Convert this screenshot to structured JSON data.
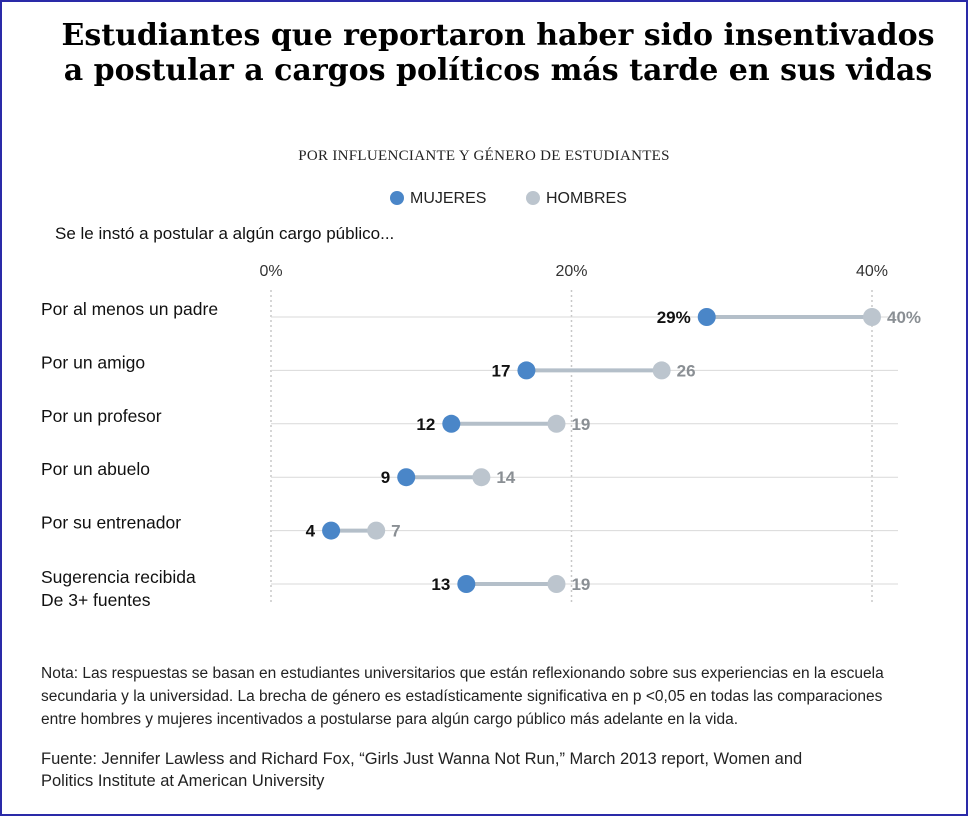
{
  "title_line1": "Estudiantes que reportaron haber sido insentivados",
  "title_line2": "a postular a cargos políticos más tarde en sus vidas",
  "subtitle": "POR INFLUENCIANTE Y GÉNERO DE ESTUDIANTES",
  "question": "Se le instó a postular a algún cargo público...",
  "note": "Nota: Las respuestas se basan en estudiantes universitarios que están reflexionando sobre sus experiencias en la escuela secundaria y la universidad. La brecha de género es estadísticamente significativa en p <0,05 en todas las comparaciones entre hombres y mujeres incentivados a postularse para algún cargo público más adelante en la vida.",
  "source": "Fuente: Jennifer Lawless and Richard Fox, “Girls Just Wanna Not Run,” March 2013 report, Women and Politics Institute at American University",
  "colors": {
    "women": "#4a86c8",
    "men": "#bcc5ce",
    "connector": "#b4bfc9",
    "grid": "#cccccc",
    "men_label": "#8a8f94"
  },
  "chart_data": {
    "type": "dot-plot",
    "legend": [
      "MUJERES",
      "HOMBRES"
    ],
    "legend_position": "top-center",
    "x_ticks": [
      "0%",
      "20%",
      "40%"
    ],
    "xlim": [
      0,
      40
    ],
    "grid": true,
    "categories": [
      [
        "Por al menos un padre"
      ],
      [
        "Por un amigo"
      ],
      [
        "Por un profesor"
      ],
      [
        "Por un abuelo"
      ],
      [
        "Por su entrenador"
      ],
      [
        "Sugerencia recibida",
        "De 3+ fuentes"
      ]
    ],
    "series": [
      {
        "name": "MUJERES",
        "values": [
          29,
          17,
          12,
          9,
          4,
          13
        ],
        "labels": [
          "29%",
          "17",
          "12",
          "9",
          "4",
          "13"
        ]
      },
      {
        "name": "HOMBRES",
        "values": [
          40,
          26,
          19,
          14,
          7,
          19
        ],
        "labels": [
          "40%",
          "26",
          "19",
          "14",
          "7",
          "19"
        ]
      }
    ]
  }
}
